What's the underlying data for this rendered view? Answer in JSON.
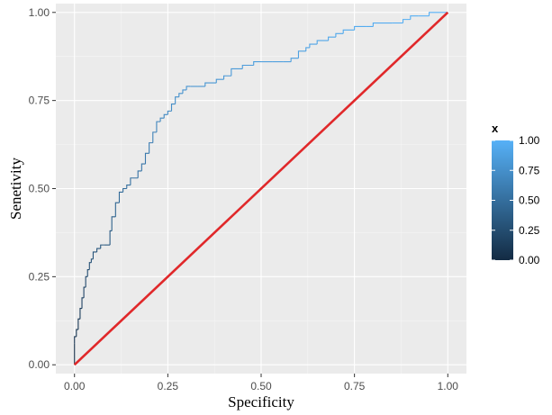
{
  "chart_data": {
    "type": "line",
    "title": "",
    "xlabel": "Specificity",
    "ylabel": "Senetivity",
    "xlim": [
      -0.05,
      1.05
    ],
    "ylim": [
      -0.025,
      1.025
    ],
    "x_ticks": [
      "0.00",
      "0.25",
      "0.50",
      "0.75",
      "1.00"
    ],
    "y_ticks": [
      "0.00",
      "0.25",
      "0.50",
      "0.75",
      "1.00"
    ],
    "grid": true,
    "background": "#ebebeb",
    "legend": {
      "title": "x",
      "position": "right",
      "type": "colorbar",
      "ticks": [
        "0.00",
        "0.25",
        "0.50",
        "0.75",
        "1.00"
      ],
      "color_low": "#132b43",
      "color_high": "#56b1f7"
    },
    "series": [
      {
        "style": "step",
        "color_scale": true,
        "x": [
          0.0,
          0.0,
          0.005,
          0.01,
          0.015,
          0.02,
          0.025,
          0.03,
          0.035,
          0.04,
          0.045,
          0.05,
          0.06,
          0.07,
          0.08,
          0.095,
          0.1,
          0.11,
          0.12,
          0.13,
          0.14,
          0.15,
          0.17,
          0.18,
          0.19,
          0.2,
          0.21,
          0.22,
          0.23,
          0.24,
          0.25,
          0.26,
          0.27,
          0.28,
          0.29,
          0.3,
          0.31,
          0.33,
          0.35,
          0.38,
          0.4,
          0.42,
          0.45,
          0.48,
          0.5,
          0.53,
          0.56,
          0.58,
          0.6,
          0.62,
          0.63,
          0.65,
          0.68,
          0.7,
          0.72,
          0.75,
          0.78,
          0.8,
          0.85,
          0.88,
          0.9,
          0.92,
          0.95,
          0.98,
          1.0
        ],
        "y": [
          0.0,
          0.06,
          0.08,
          0.1,
          0.13,
          0.16,
          0.19,
          0.22,
          0.25,
          0.27,
          0.29,
          0.3,
          0.32,
          0.33,
          0.34,
          0.34,
          0.38,
          0.42,
          0.46,
          0.49,
          0.5,
          0.51,
          0.53,
          0.55,
          0.57,
          0.6,
          0.63,
          0.66,
          0.69,
          0.7,
          0.71,
          0.72,
          0.74,
          0.76,
          0.77,
          0.78,
          0.79,
          0.79,
          0.79,
          0.8,
          0.81,
          0.82,
          0.84,
          0.85,
          0.86,
          0.86,
          0.86,
          0.86,
          0.87,
          0.89,
          0.9,
          0.91,
          0.92,
          0.93,
          0.94,
          0.95,
          0.96,
          0.96,
          0.97,
          0.97,
          0.98,
          0.99,
          0.99,
          1.0,
          1.0
        ]
      },
      {
        "style": "line",
        "color": "#e0282a",
        "x": [
          0,
          1
        ],
        "y": [
          0,
          1
        ]
      }
    ]
  }
}
